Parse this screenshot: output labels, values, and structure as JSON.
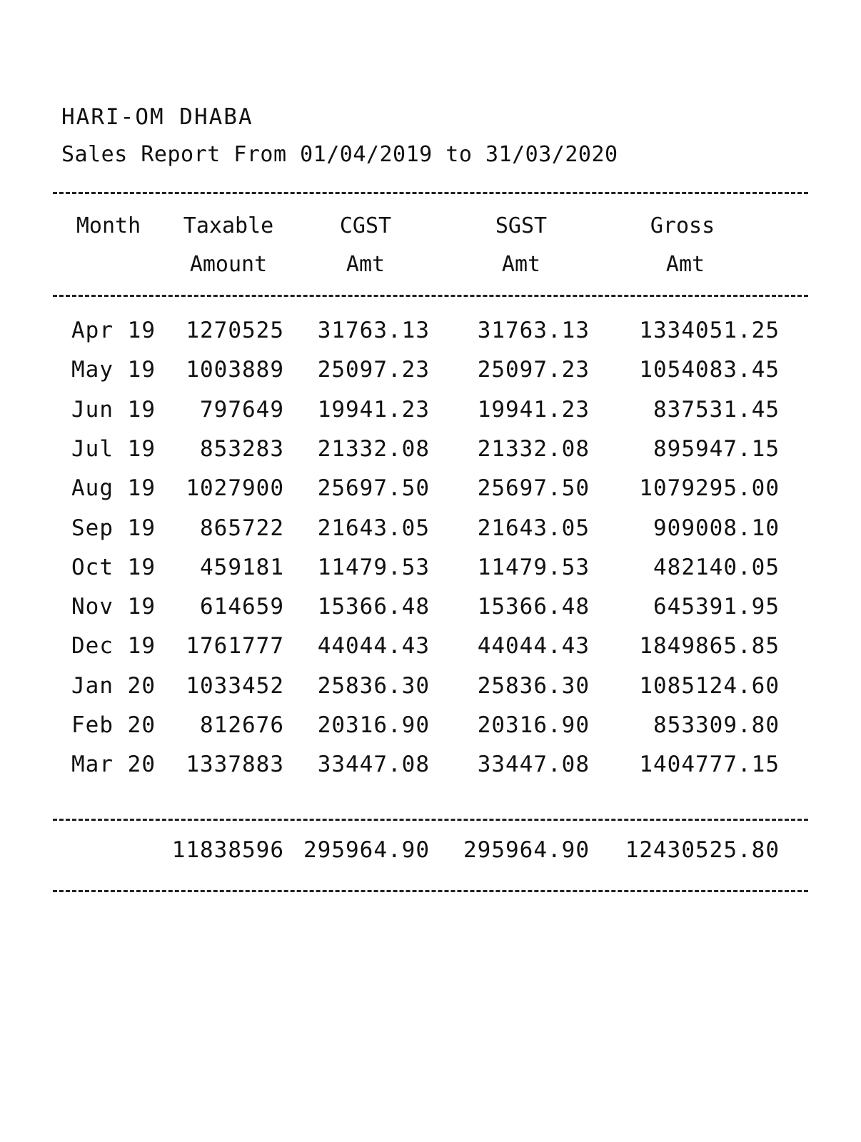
{
  "report": {
    "business_name": "HARI-OM DHABA",
    "subtitle": "Sales Report From 01/04/2019 to 31/03/2020"
  },
  "columns": {
    "month": {
      "line1": "Month",
      "line2": ""
    },
    "taxable": {
      "line1": "Taxable",
      "line2": "Amount"
    },
    "cgst": {
      "line1": "CGST",
      "line2": "Amt"
    },
    "sgst": {
      "line1": "SGST",
      "line2": "Amt"
    },
    "gross": {
      "line1": "Gross",
      "line2": "Amt"
    }
  },
  "rows": [
    {
      "month": "Apr 19",
      "taxable": "1270525",
      "cgst": "31763.13",
      "sgst": "31763.13",
      "gross": "1334051.25"
    },
    {
      "month": "May 19",
      "taxable": "1003889",
      "cgst": "25097.23",
      "sgst": "25097.23",
      "gross": "1054083.45"
    },
    {
      "month": "Jun 19",
      "taxable": "797649",
      "cgst": "19941.23",
      "sgst": "19941.23",
      "gross": "837531.45"
    },
    {
      "month": "Jul 19",
      "taxable": "853283",
      "cgst": "21332.08",
      "sgst": "21332.08",
      "gross": "895947.15"
    },
    {
      "month": "Aug 19",
      "taxable": "1027900",
      "cgst": "25697.50",
      "sgst": "25697.50",
      "gross": "1079295.00"
    },
    {
      "month": "Sep 19",
      "taxable": "865722",
      "cgst": "21643.05",
      "sgst": "21643.05",
      "gross": "909008.10"
    },
    {
      "month": "Oct 19",
      "taxable": "459181",
      "cgst": "11479.53",
      "sgst": "11479.53",
      "gross": "482140.05"
    },
    {
      "month": "Nov 19",
      "taxable": "614659",
      "cgst": "15366.48",
      "sgst": "15366.48",
      "gross": "645391.95"
    },
    {
      "month": "Dec 19",
      "taxable": "1761777",
      "cgst": "44044.43",
      "sgst": "44044.43",
      "gross": "1849865.85"
    },
    {
      "month": "Jan 20",
      "taxable": "1033452",
      "cgst": "25836.30",
      "sgst": "25836.30",
      "gross": "1085124.60"
    },
    {
      "month": "Feb 20",
      "taxable": "812676",
      "cgst": "20316.90",
      "sgst": "20316.90",
      "gross": "853309.80"
    },
    {
      "month": "Mar 20",
      "taxable": "1337883",
      "cgst": "33447.08",
      "sgst": "33447.08",
      "gross": "1404777.15"
    }
  ],
  "totals": {
    "taxable": "11838596",
    "cgst": "295964.90",
    "sgst": "295964.90",
    "gross": "12430525.80"
  }
}
